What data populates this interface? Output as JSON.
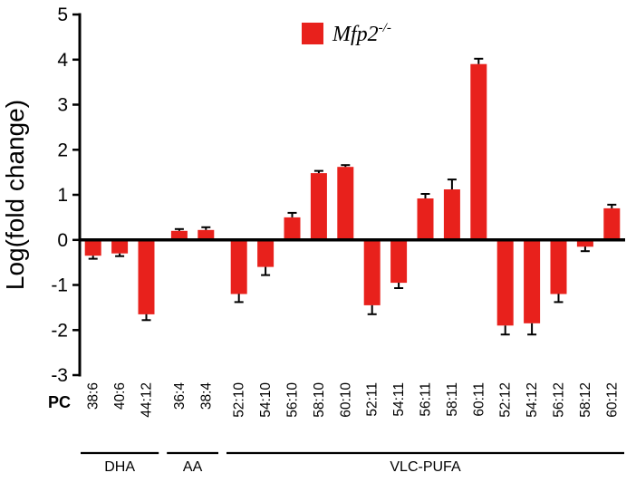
{
  "figure": {
    "background": "#ffffff"
  },
  "chart_data": {
    "type": "bar",
    "title": "",
    "ylabel": "Log(fold change)",
    "ylim": [
      -3,
      5
    ],
    "yticks": [
      5,
      4,
      3,
      2,
      1,
      0,
      -1,
      -2,
      -3
    ],
    "x_prefix_label": "PC",
    "bar_color": "#e8211c",
    "grid": false,
    "legend_position": "top-center",
    "legend": [
      {
        "label": "Mfp2",
        "superscript": "-/-",
        "color": "#e8211c"
      }
    ],
    "categories": [
      "38:6",
      "40:6",
      "44:12",
      "36:4",
      "38:4",
      "52:10",
      "54:10",
      "56:10",
      "58:10",
      "60:10",
      "52:11",
      "54:11",
      "56:11",
      "58:11",
      "60:11",
      "52:12",
      "54:12",
      "56:12",
      "58:12",
      "60:12"
    ],
    "values": [
      -0.35,
      -0.3,
      -1.65,
      0.2,
      0.22,
      -1.2,
      -0.6,
      0.5,
      1.48,
      1.62,
      -1.45,
      -0.95,
      0.92,
      1.12,
      3.9,
      -1.9,
      -1.85,
      -1.2,
      -0.15,
      0.7
    ],
    "errors": [
      0.07,
      0.06,
      0.13,
      0.04,
      0.06,
      0.18,
      0.18,
      0.1,
      0.05,
      0.04,
      0.2,
      0.12,
      0.1,
      0.22,
      0.12,
      0.2,
      0.25,
      0.18,
      0.1,
      0.08
    ],
    "groups": [
      {
        "label": "DHA",
        "start": 0,
        "end": 2
      },
      {
        "label": "AA",
        "start": 3,
        "end": 4
      },
      {
        "label": "VLC-PUFA",
        "start": 5,
        "end": 19
      }
    ]
  }
}
